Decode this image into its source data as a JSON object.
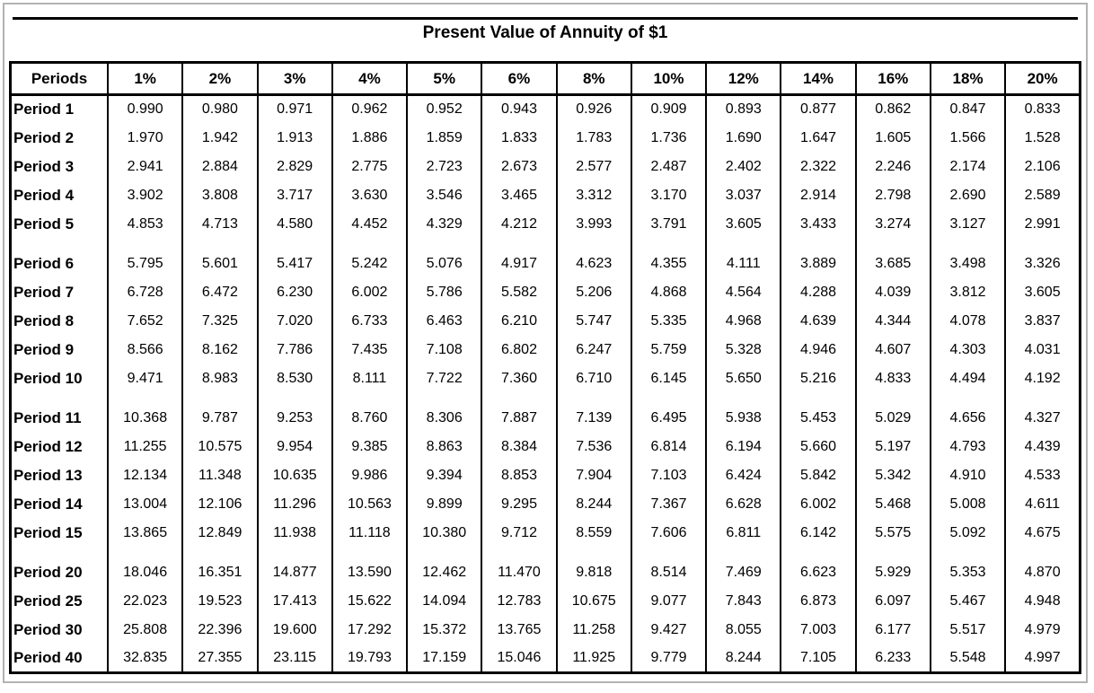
{
  "chart_data": {
    "type": "table",
    "title": "Present Value of Annuity of $1",
    "columns": [
      "Periods",
      "1%",
      "2%",
      "3%",
      "4%",
      "5%",
      "6%",
      "8%",
      "10%",
      "12%",
      "14%",
      "16%",
      "18%",
      "20%"
    ],
    "rows": [
      {
        "label": "Period 1",
        "values": [
          "0.990",
          "0.980",
          "0.971",
          "0.962",
          "0.952",
          "0.943",
          "0.926",
          "0.909",
          "0.893",
          "0.877",
          "0.862",
          "0.847",
          "0.833"
        ]
      },
      {
        "label": "Period 2",
        "values": [
          "1.970",
          "1.942",
          "1.913",
          "1.886",
          "1.859",
          "1.833",
          "1.783",
          "1.736",
          "1.690",
          "1.647",
          "1.605",
          "1.566",
          "1.528"
        ]
      },
      {
        "label": "Period 3",
        "values": [
          "2.941",
          "2.884",
          "2.829",
          "2.775",
          "2.723",
          "2.673",
          "2.577",
          "2.487",
          "2.402",
          "2.322",
          "2.246",
          "2.174",
          "2.106"
        ]
      },
      {
        "label": "Period 4",
        "values": [
          "3.902",
          "3.808",
          "3.717",
          "3.630",
          "3.546",
          "3.465",
          "3.312",
          "3.170",
          "3.037",
          "2.914",
          "2.798",
          "2.690",
          "2.589"
        ]
      },
      {
        "label": "Period 5",
        "values": [
          "4.853",
          "4.713",
          "4.580",
          "4.452",
          "4.329",
          "4.212",
          "3.993",
          "3.791",
          "3.605",
          "3.433",
          "3.274",
          "3.127",
          "2.991"
        ]
      },
      {
        "label": "Period 6",
        "values": [
          "5.795",
          "5.601",
          "5.417",
          "5.242",
          "5.076",
          "4.917",
          "4.623",
          "4.355",
          "4.111",
          "3.889",
          "3.685",
          "3.498",
          "3.326"
        ]
      },
      {
        "label": "Period 7",
        "values": [
          "6.728",
          "6.472",
          "6.230",
          "6.002",
          "5.786",
          "5.582",
          "5.206",
          "4.868",
          "4.564",
          "4.288",
          "4.039",
          "3.812",
          "3.605"
        ]
      },
      {
        "label": "Period 8",
        "values": [
          "7.652",
          "7.325",
          "7.020",
          "6.733",
          "6.463",
          "6.210",
          "5.747",
          "5.335",
          "4.968",
          "4.639",
          "4.344",
          "4.078",
          "3.837"
        ]
      },
      {
        "label": "Period 9",
        "values": [
          "8.566",
          "8.162",
          "7.786",
          "7.435",
          "7.108",
          "6.802",
          "6.247",
          "5.759",
          "5.328",
          "4.946",
          "4.607",
          "4.303",
          "4.031"
        ]
      },
      {
        "label": "Period 10",
        "values": [
          "9.471",
          "8.983",
          "8.530",
          "8.111",
          "7.722",
          "7.360",
          "6.710",
          "6.145",
          "5.650",
          "5.216",
          "4.833",
          "4.494",
          "4.192"
        ]
      },
      {
        "label": "Period 11",
        "values": [
          "10.368",
          "9.787",
          "9.253",
          "8.760",
          "8.306",
          "7.887",
          "7.139",
          "6.495",
          "5.938",
          "5.453",
          "5.029",
          "4.656",
          "4.327"
        ]
      },
      {
        "label": "Period 12",
        "values": [
          "11.255",
          "10.575",
          "9.954",
          "9.385",
          "8.863",
          "8.384",
          "7.536",
          "6.814",
          "6.194",
          "5.660",
          "5.197",
          "4.793",
          "4.439"
        ]
      },
      {
        "label": "Period 13",
        "values": [
          "12.134",
          "11.348",
          "10.635",
          "9.986",
          "9.394",
          "8.853",
          "7.904",
          "7.103",
          "6.424",
          "5.842",
          "5.342",
          "4.910",
          "4.533"
        ]
      },
      {
        "label": "Period 14",
        "values": [
          "13.004",
          "12.106",
          "11.296",
          "10.563",
          "9.899",
          "9.295",
          "8.244",
          "7.367",
          "6.628",
          "6.002",
          "5.468",
          "5.008",
          "4.611"
        ]
      },
      {
        "label": "Period 15",
        "values": [
          "13.865",
          "12.849",
          "11.938",
          "11.118",
          "10.380",
          "9.712",
          "8.559",
          "7.606",
          "6.811",
          "6.142",
          "5.575",
          "5.092",
          "4.675"
        ]
      },
      {
        "label": "Period 20",
        "values": [
          "18.046",
          "16.351",
          "14.877",
          "13.590",
          "12.462",
          "11.470",
          "9.818",
          "8.514",
          "7.469",
          "6.623",
          "5.929",
          "5.353",
          "4.870"
        ]
      },
      {
        "label": "Period 25",
        "values": [
          "22.023",
          "19.523",
          "17.413",
          "15.622",
          "14.094",
          "12.783",
          "10.675",
          "9.077",
          "7.843",
          "6.873",
          "6.097",
          "5.467",
          "4.948"
        ]
      },
      {
        "label": "Period 30",
        "values": [
          "25.808",
          "22.396",
          "19.600",
          "17.292",
          "15.372",
          "13.765",
          "11.258",
          "9.427",
          "8.055",
          "7.003",
          "6.177",
          "5.517",
          "4.979"
        ]
      },
      {
        "label": "Period 40",
        "values": [
          "32.835",
          "27.355",
          "23.115",
          "19.793",
          "17.159",
          "15.046",
          "11.925",
          "9.779",
          "8.244",
          "7.105",
          "6.233",
          "5.548",
          "4.997"
        ]
      }
    ],
    "group_breaks_after": [
      "Period 5",
      "Period 10",
      "Period 15"
    ],
    "colors": {
      "text": "#000000",
      "table_border": "#000000",
      "outer_frame_border": "#b3b3b3",
      "background": "#ffffff"
    }
  }
}
